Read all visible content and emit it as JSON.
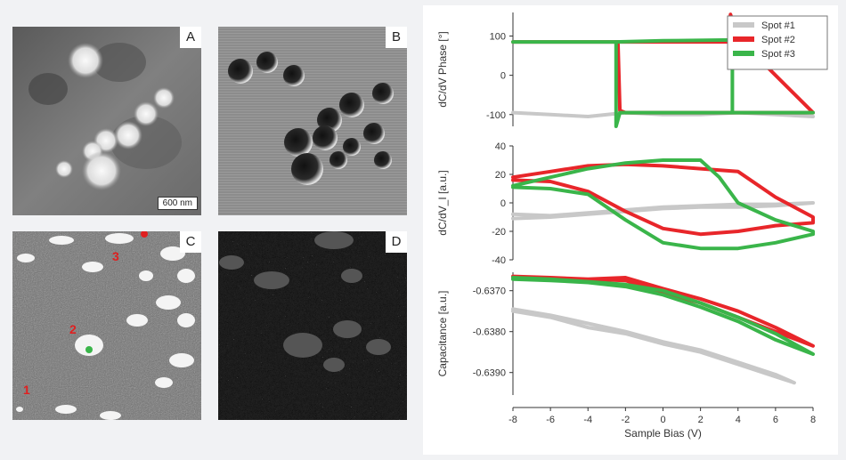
{
  "images": [
    {
      "tag": "A",
      "scale_label": "600 nm"
    },
    {
      "tag": "B"
    },
    {
      "tag": "C",
      "spots": [
        "1",
        "2",
        "3"
      ]
    },
    {
      "tag": "D"
    }
  ],
  "chart_data": [
    {
      "type": "line",
      "ylabel": "dC/dV Phase [°]",
      "ylim": [
        -130,
        160
      ],
      "yticks": [
        100,
        0,
        -100
      ],
      "legend": {
        "placement": "top-right",
        "entries": [
          "Spot #1",
          "Spot #2",
          "Spot #3"
        ]
      },
      "series": [
        {
          "name": "Spot #1",
          "color": "#c8c8c8",
          "x": [
            -8,
            -6,
            -4,
            -2,
            0,
            2,
            4,
            6,
            8
          ],
          "y": [
            -95,
            -100,
            -105,
            -95,
            -100,
            -100,
            -95,
            -100,
            -105
          ]
        },
        {
          "name": "Spot #2",
          "color": "#e8262a",
          "loop": [
            [
              -8,
              85
            ],
            [
              -3,
              85
            ],
            [
              -2.4,
              85
            ],
            [
              -2.3,
              -90
            ],
            [
              -2,
              -95
            ],
            [
              0,
              -95
            ],
            [
              3,
              -95
            ],
            [
              4,
              -95
            ],
            [
              8,
              -95
            ],
            [
              8,
              -95
            ],
            [
              4,
              95
            ],
            [
              3.6,
              155
            ],
            [
              3.5,
              85
            ],
            [
              0,
              85
            ],
            [
              -2,
              85
            ],
            [
              -8,
              85
            ]
          ]
        },
        {
          "name": "Spot #3",
          "color": "#3ab54a",
          "loop": [
            [
              -8,
              85
            ],
            [
              -2.5,
              85
            ],
            [
              -2.5,
              -130
            ],
            [
              -2.3,
              -95
            ],
            [
              0,
              -95
            ],
            [
              8,
              -95
            ],
            [
              3.7,
              -95
            ],
            [
              3.7,
              90
            ],
            [
              0,
              88
            ],
            [
              -2.5,
              85
            ],
            [
              -8,
              85
            ]
          ]
        }
      ]
    },
    {
      "type": "line",
      "ylabel": "dC/dV_I [a.u.]",
      "ylim": [
        -40,
        40
      ],
      "yticks": [
        40,
        20,
        0,
        -20,
        -40
      ],
      "series": [
        {
          "name": "Spot #1",
          "color": "#c8c8c8",
          "loop": [
            [
              -8,
              -8
            ],
            [
              -6,
              -9
            ],
            [
              -4,
              -7
            ],
            [
              -2,
              -5
            ],
            [
              0,
              -3
            ],
            [
              2,
              -2
            ],
            [
              4,
              -1
            ],
            [
              6,
              -1
            ],
            [
              8,
              0
            ],
            [
              6,
              -2
            ],
            [
              4,
              -3
            ],
            [
              2,
              -3
            ],
            [
              0,
              -4
            ],
            [
              -2,
              -6
            ],
            [
              -4,
              -8
            ],
            [
              -6,
              -10
            ],
            [
              -8,
              -11
            ]
          ]
        },
        {
          "name": "Spot #2",
          "color": "#e8262a",
          "loop": [
            [
              -8,
              18
            ],
            [
              -6,
              22
            ],
            [
              -4,
              26
            ],
            [
              -2,
              27
            ],
            [
              0,
              26
            ],
            [
              2,
              24
            ],
            [
              4,
              22
            ],
            [
              6,
              4
            ],
            [
              8,
              -10
            ],
            [
              8,
              -14
            ],
            [
              6,
              -16
            ],
            [
              4,
              -20
            ],
            [
              2,
              -22
            ],
            [
              0,
              -18
            ],
            [
              -2,
              -6
            ],
            [
              -4,
              8
            ],
            [
              -6,
              15
            ],
            [
              -8,
              16
            ]
          ]
        },
        {
          "name": "Spot #3",
          "color": "#3ab54a",
          "loop": [
            [
              -8,
              12
            ],
            [
              -6,
              18
            ],
            [
              -4,
              24
            ],
            [
              -2,
              28
            ],
            [
              0,
              30
            ],
            [
              2,
              30
            ],
            [
              3,
              18
            ],
            [
              4,
              0
            ],
            [
              6,
              -12
            ],
            [
              8,
              -20
            ],
            [
              8,
              -22
            ],
            [
              6,
              -28
            ],
            [
              4,
              -32
            ],
            [
              2,
              -32
            ],
            [
              0,
              -28
            ],
            [
              -2,
              -12
            ],
            [
              -4,
              6
            ],
            [
              -6,
              10
            ],
            [
              -8,
              11
            ]
          ]
        }
      ]
    },
    {
      "type": "line",
      "ylabel": "Capacitance [a.u.]",
      "xlabel": "Sample Bias (V)",
      "xlim": [
        -8,
        8
      ],
      "xticks": [
        -8,
        -6,
        -4,
        -2,
        0,
        2,
        4,
        6,
        8
      ],
      "ylim": [
        -0.63955,
        -0.63655
      ],
      "yticks": [
        -0.637,
        -0.638,
        -0.639
      ],
      "ytick_labels": [
        "-0.6370",
        "-0.6380",
        "-0.6390"
      ],
      "series": [
        {
          "name": "Spot #1",
          "color": "#c8c8c8",
          "loop": [
            [
              -8,
              -0.63745
            ],
            [
              -6,
              -0.6376
            ],
            [
              -4,
              -0.6378
            ],
            [
              -2,
              -0.638
            ],
            [
              0,
              -0.63825
            ],
            [
              2,
              -0.63845
            ],
            [
              4,
              -0.63875
            ],
            [
              6,
              -0.63905
            ],
            [
              7,
              -0.63925
            ],
            [
              6,
              -0.6391
            ],
            [
              4,
              -0.6388
            ],
            [
              2,
              -0.6385
            ],
            [
              0,
              -0.6383
            ],
            [
              -2,
              -0.63805
            ],
            [
              -4,
              -0.6379
            ],
            [
              -6,
              -0.63765
            ],
            [
              -8,
              -0.6375
            ]
          ]
        },
        {
          "name": "Spot #2",
          "color": "#e8262a",
          "loop": [
            [
              -8,
              -0.63665
            ],
            [
              -6,
              -0.63668
            ],
            [
              -4,
              -0.63672
            ],
            [
              -2,
              -0.63668
            ],
            [
              0,
              -0.63695
            ],
            [
              2,
              -0.6372
            ],
            [
              4,
              -0.6375
            ],
            [
              6,
              -0.6379
            ],
            [
              8,
              -0.63835
            ],
            [
              6,
              -0.638
            ],
            [
              4,
              -0.63765
            ],
            [
              2,
              -0.6373
            ],
            [
              0,
              -0.63705
            ],
            [
              -2,
              -0.63675
            ],
            [
              -4,
              -0.63672
            ],
            [
              -6,
              -0.6367
            ],
            [
              -8,
              -0.63668
            ]
          ]
        },
        {
          "name": "Spot #3",
          "color": "#3ab54a",
          "loop": [
            [
              -8,
              -0.63668
            ],
            [
              -6,
              -0.63672
            ],
            [
              -4,
              -0.63678
            ],
            [
              -2,
              -0.63685
            ],
            [
              0,
              -0.637
            ],
            [
              2,
              -0.6373
            ],
            [
              4,
              -0.63765
            ],
            [
              6,
              -0.63805
            ],
            [
              8,
              -0.63855
            ],
            [
              6,
              -0.6382
            ],
            [
              4,
              -0.63775
            ],
            [
              2,
              -0.6374
            ],
            [
              0,
              -0.6371
            ],
            [
              -2,
              -0.6369
            ],
            [
              -4,
              -0.6368
            ],
            [
              -6,
              -0.63675
            ],
            [
              -8,
              -0.63672
            ]
          ]
        }
      ]
    }
  ]
}
